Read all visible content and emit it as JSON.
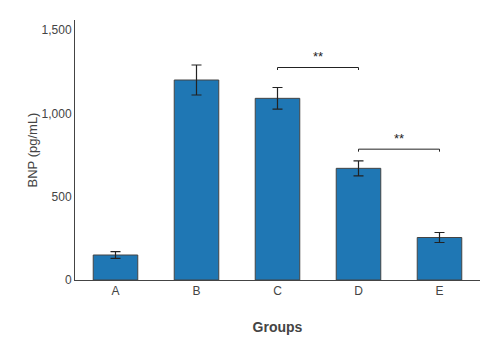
{
  "chart_data": {
    "type": "bar",
    "categories": [
      "A",
      "B",
      "C",
      "D",
      "E"
    ],
    "values": [
      150,
      1200,
      1090,
      670,
      255
    ],
    "errors": [
      20,
      90,
      65,
      45,
      30
    ],
    "xlabel": "Groups",
    "ylabel": "BNP (pg/mL)",
    "ylim": [
      0,
      1560
    ],
    "yticks": [
      0,
      500,
      {
        "value": 1000,
        "label": "1,000"
      },
      {
        "value": 1500,
        "label": "1,500"
      }
    ],
    "grid": false,
    "annotations": [
      {
        "from": "C",
        "to": "D",
        "y": 1260,
        "text": "**"
      },
      {
        "from": "D",
        "to": "E",
        "y": 770,
        "text": "**"
      }
    ]
  }
}
